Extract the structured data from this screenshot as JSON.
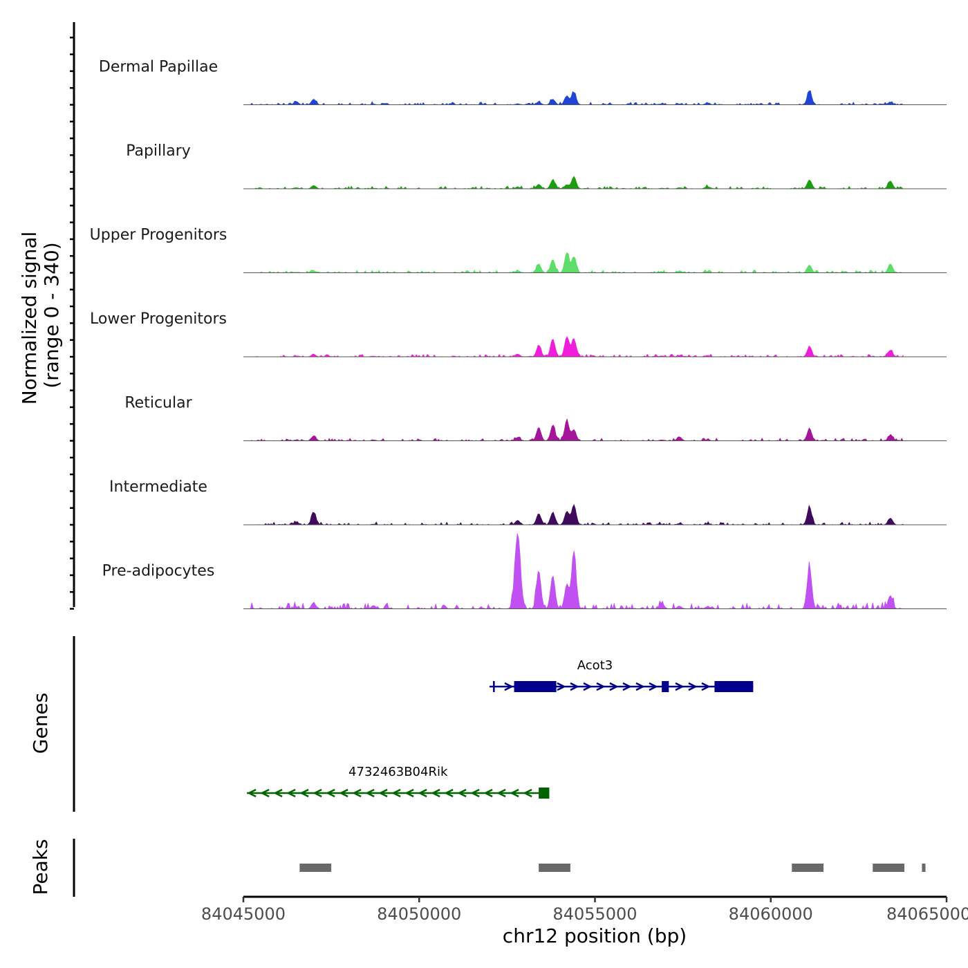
{
  "chart_data": {
    "type": "area",
    "title": "",
    "ylabel": "Normalized signal",
    "ylabel_range": "(range 0 - 340)",
    "y_range": [
      0,
      340
    ],
    "xlabel": "chr12 position (bp)",
    "xlim": [
      84045000,
      84065000
    ],
    "x_ticks": [
      84045000,
      84050000,
      84055000,
      84060000,
      84065000
    ],
    "x_tick_labels": [
      "84045000",
      "84050000",
      "84055000",
      "84060000",
      "84065000"
    ],
    "peak_centers": [
      84046500,
      84047000,
      84048700,
      84052800,
      84053400,
      84053800,
      84054200,
      84054400,
      84056900,
      84057400,
      84058200,
      84061100,
      84063400
    ],
    "series": [
      {
        "name": "Dermal Papillae",
        "color": "#1f45d6",
        "values": [
          15,
          25,
          3,
          4,
          12,
          25,
          40,
          55,
          4,
          3,
          8,
          60,
          12
        ]
      },
      {
        "name": "Papillary",
        "color": "#1a9e0f",
        "values": [
          5,
          15,
          2,
          8,
          20,
          40,
          18,
          55,
          3,
          5,
          10,
          40,
          35
        ]
      },
      {
        "name": "Upper Progenitors",
        "color": "#5fdd6b",
        "values": [
          3,
          8,
          2,
          10,
          40,
          60,
          90,
          70,
          3,
          6,
          5,
          35,
          40
        ]
      },
      {
        "name": "Lower Progenitors",
        "color": "#f01edc",
        "values": [
          4,
          10,
          3,
          12,
          50,
          80,
          90,
          80,
          4,
          5,
          6,
          45,
          30
        ]
      },
      {
        "name": "Reticular",
        "color": "#a5159a",
        "values": [
          4,
          22,
          4,
          15,
          60,
          70,
          90,
          50,
          4,
          18,
          6,
          55,
          25
        ]
      },
      {
        "name": "Intermediate",
        "color": "#3d0a5c",
        "values": [
          12,
          55,
          3,
          20,
          50,
          55,
          60,
          90,
          3,
          6,
          5,
          80,
          30
        ]
      },
      {
        "name": "Pre-adipocytes",
        "color": "#c050f2",
        "values": [
          10,
          25,
          15,
          340,
          170,
          150,
          110,
          260,
          25,
          12,
          10,
          190,
          60
        ]
      }
    ],
    "genes": [
      {
        "name": "Acot3",
        "label": "Acot3",
        "color": "#00008b",
        "strand": "+",
        "start": 84052000,
        "end": 84059500,
        "exons": [
          [
            84052100,
            84052150
          ],
          [
            84052700,
            84053900
          ],
          [
            84056900,
            84057100
          ],
          [
            84058400,
            84059500
          ]
        ]
      },
      {
        "name": "4732463B04Rik",
        "label": "4732463B04Rik",
        "color": "#006400",
        "strand": "-",
        "start": 84045100,
        "end": 84053700,
        "exons": [
          [
            84053400,
            84053700
          ]
        ]
      }
    ],
    "genes_title": "Genes",
    "peaks_title": "Peaks",
    "peaks": [
      [
        84046600,
        84047500
      ],
      [
        84053400,
        84054300
      ],
      [
        84060600,
        84061500
      ],
      [
        84062900,
        84063800
      ],
      [
        84064300,
        84064400
      ]
    ],
    "peak_color": "#696969"
  }
}
